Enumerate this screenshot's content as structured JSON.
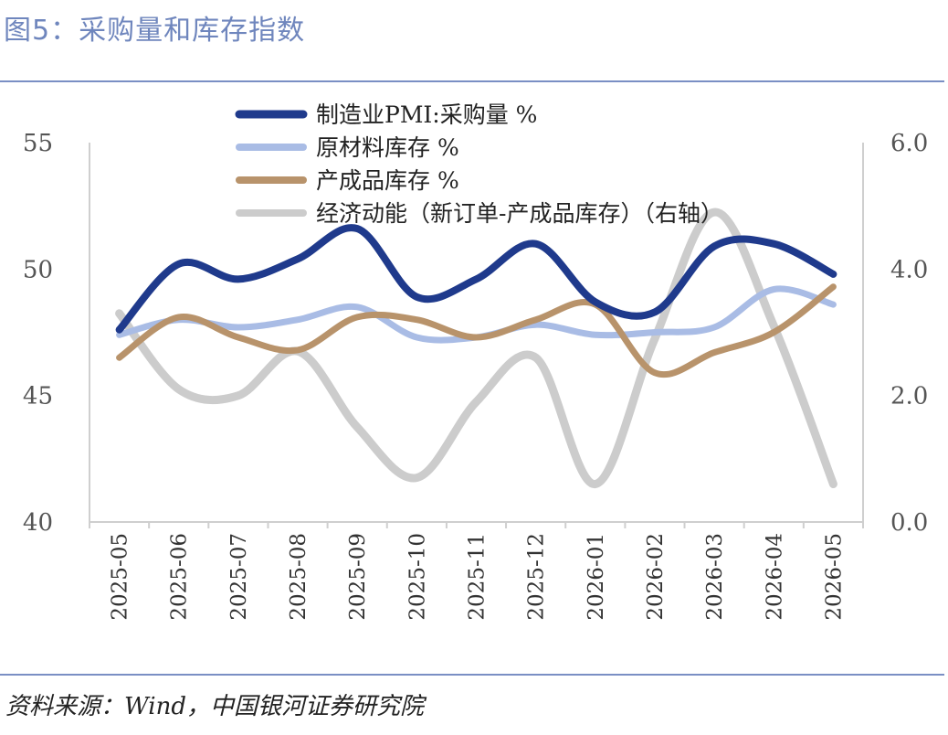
{
  "header": {
    "title": "图5：采购量和库存指数"
  },
  "footer": {
    "source": "资料来源：Wind，中国银河证券研究院"
  },
  "chart_data": {
    "type": "line",
    "title": "图5：采购量和库存指数",
    "x": [
      "2025-05",
      "2025-06",
      "2025-07",
      "2025-08",
      "2025-09",
      "2025-10",
      "2025-11",
      "2025-12",
      "2026-01",
      "2026-02",
      "2026-03",
      "2026-04",
      "2026-05"
    ],
    "y_left": {
      "lim": [
        40,
        55
      ],
      "ticks": [
        "40",
        "45",
        "50",
        "55"
      ]
    },
    "y_right": {
      "lim": [
        0,
        6
      ],
      "ticks": [
        "0.0",
        "2.0",
        "4.0",
        "6.0"
      ]
    },
    "grid": false,
    "legend_position": "top",
    "series": [
      {
        "name": "制造业PMI:采购量 %",
        "axis": "left",
        "color": "#1f3a8c",
        "values": [
          47.6,
          50.2,
          49.6,
          50.4,
          51.6,
          48.9,
          49.6,
          51.0,
          48.7,
          48.3,
          50.9,
          51.0,
          49.8
        ]
      },
      {
        "name": "原材料库存 %",
        "axis": "left",
        "color": "#a9bce5",
        "values": [
          47.4,
          48.0,
          47.7,
          48.0,
          48.5,
          47.3,
          47.3,
          47.8,
          47.4,
          47.5,
          47.7,
          49.2,
          48.6
        ]
      },
      {
        "name": "产成品库存 %",
        "axis": "left",
        "color": "#b8936b",
        "values": [
          46.5,
          48.1,
          47.3,
          46.8,
          48.1,
          48.0,
          47.3,
          48.0,
          48.6,
          45.9,
          46.7,
          47.5,
          49.3
        ]
      },
      {
        "name": "经济动能（新订单-产成品库存）（右轴）",
        "axis": "right",
        "color": "#cccccc",
        "values": [
          3.3,
          2.1,
          2.0,
          2.7,
          1.5,
          0.7,
          1.9,
          2.6,
          0.6,
          2.9,
          4.9,
          3.1,
          0.6
        ]
      }
    ]
  }
}
